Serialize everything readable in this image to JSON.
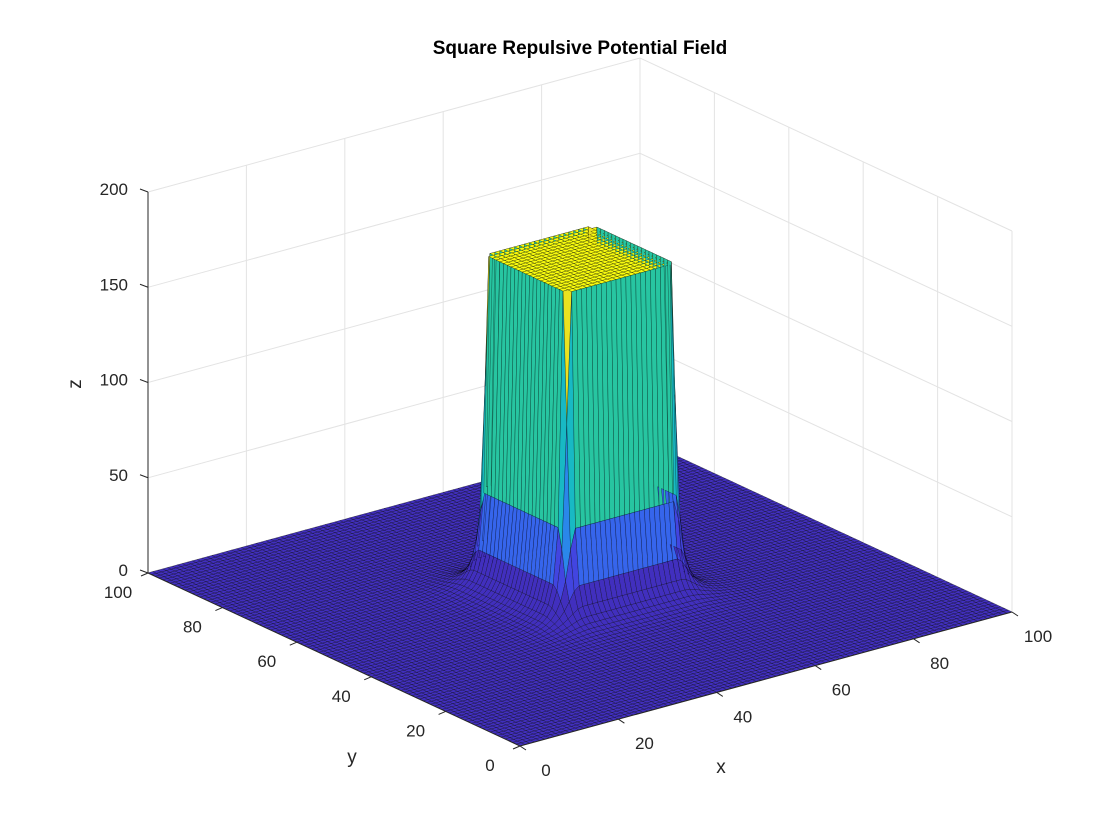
{
  "chart_data": {
    "type": "surface",
    "title": "Square Repulsive Potential Field",
    "xlabel": "x",
    "ylabel": "y",
    "zlabel": "z",
    "xlim": [
      0,
      100
    ],
    "ylim": [
      0,
      100
    ],
    "zlim": [
      0,
      200
    ],
    "x_ticks": [
      "0",
      "20",
      "40",
      "60",
      "80",
      "100"
    ],
    "y_ticks": [
      "0",
      "20",
      "40",
      "60",
      "80",
      "100"
    ],
    "z_ticks": [
      "0",
      "50",
      "100",
      "150",
      "200"
    ],
    "grid": true,
    "colormap": "parula",
    "surface": {
      "obstacle_x_range": [
        40,
        60
      ],
      "obstacle_y_range": [
        40,
        60
      ],
      "plateau_height": 175,
      "ground_height": 0,
      "grid_step": 1
    },
    "colors": {
      "low": "#3d26a8",
      "mid": "#2a9df4",
      "high": "#f9fb0e",
      "edge": "#000000"
    }
  }
}
